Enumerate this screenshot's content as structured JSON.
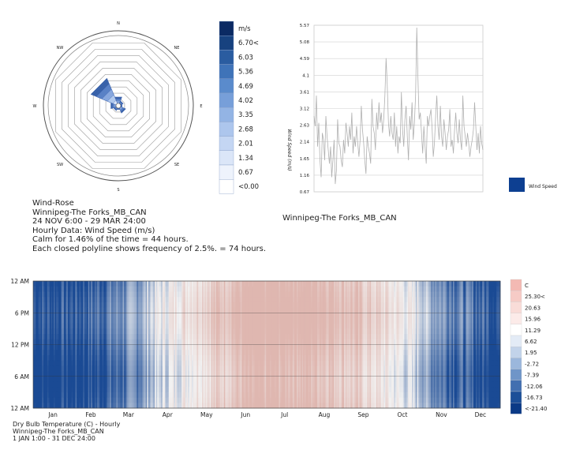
{
  "palettes": {
    "wind_legend": [
      "#0b2a63",
      "#17427f",
      "#2a5ca0",
      "#3f73b8",
      "#5a8bcc",
      "#779fd9",
      "#93b4e4",
      "#adc6ed",
      "#c4d6f3",
      "#dbe6f8",
      "#eef3fc",
      "#ffffff"
    ],
    "wind_rose_fill": "#8fb0e3",
    "wind_rose_stroke": "#4a6fb3",
    "temp_legend": [
      "#f3b9b3",
      "#f6cbc6",
      "#f9dcd8",
      "#fcebe9",
      "#ffffff",
      "#e3ebf6",
      "#c2d3ea",
      "#9bb7dc",
      "#6f95c8",
      "#426fb0",
      "#1c4f98",
      "#0b3a86"
    ],
    "heat_warm": "#d9a39a",
    "heat_cold": "#1a4a94",
    "heat_mid": "#f2f2f2",
    "line_color": "#b0b0b0",
    "series_color": "#0d3f91"
  },
  "chart_data": [
    {
      "type": "wind-rose",
      "directions": [
        "N",
        "NE",
        "E",
        "SE",
        "S",
        "SW",
        "W",
        "NW"
      ],
      "direction_frequency_pct": [
        3.5,
        2.0,
        1.5,
        3.0,
        1.5,
        2.0,
        3.0,
        11.0
      ],
      "ring_step_pct": 2.5,
      "ring_count": 10,
      "legend": {
        "unit": "m/s",
        "labels": [
          "m/s",
          "6.70<",
          "6.03",
          "5.36",
          "4.69",
          "4.02",
          "3.35",
          "2.68",
          "2.01",
          "1.34",
          "0.67",
          "<0.00"
        ]
      },
      "caption": [
        "Wind-Rose",
        "Winnipeg-The Forks_MB_CAN",
        "24 NOV 6:00 - 29 MAR 24:00",
        "Hourly Data: Wind Speed (m/s)",
        "Calm for 1.46% of the time = 44 hours.",
        "Each closed polyline shows frequency of 2.5%. = 74 hours."
      ]
    },
    {
      "type": "line",
      "y_ticks": [
        "5.57",
        "5.08",
        "4.59",
        "4.1",
        "3.61",
        "3.12",
        "2.63",
        "2.14",
        "1.65",
        "1.16",
        "0.67"
      ],
      "ylim": [
        0.67,
        5.57
      ],
      "ylabel": "Wind Speed (m/s)",
      "series": [
        {
          "name": "Wind Speed",
          "values": [
            2.9,
            2.6,
            3.5,
            2.0,
            2.7,
            1.6,
            1.1,
            2.4,
            2.2,
            1.6,
            2.9,
            2.3,
            1.9,
            1.5,
            2.0,
            1.1,
            1.6,
            2.2,
            0.9,
            1.3,
            2.8,
            2.1,
            2.0,
            1.6,
            1.4,
            2.2,
            1.8,
            2.7,
            2.4,
            2.0,
            2.6,
            2.2,
            3.0,
            1.8,
            2.3,
            2.0,
            2.6,
            2.1,
            1.7,
            2.2,
            3.2,
            2.5,
            2.1,
            1.6,
            1.2,
            2.3,
            2.0,
            1.8,
            1.5,
            3.4,
            2.6,
            2.4,
            1.9,
            3.0,
            2.5,
            3.3,
            2.7,
            3.0,
            2.4,
            2.8,
            3.5,
            4.6,
            3.8,
            2.7,
            2.3,
            2.9,
            2.4,
            2.2,
            3.0,
            2.0,
            2.6,
            1.8,
            2.3,
            2.1,
            3.6,
            2.5,
            2.0,
            2.8,
            3.2,
            2.3,
            1.6,
            2.9,
            2.5,
            3.3,
            2.2,
            2.7,
            3.5,
            5.5,
            4.0,
            2.8,
            3.0,
            2.4,
            1.8,
            2.6,
            2.0,
            1.5,
            2.9,
            2.6,
            2.9,
            3.1,
            2.5,
            1.7,
            2.1,
            2.9,
            3.5,
            2.6,
            2.2,
            3.2,
            2.3,
            2.0,
            2.8,
            2.4,
            1.9,
            2.3,
            2.5,
            3.1,
            2.0,
            2.2,
            1.8,
            2.5,
            3.0,
            2.4,
            2.1,
            2.8,
            2.2,
            1.9,
            3.5,
            2.6,
            2.3,
            2.0,
            2.4,
            2.1,
            1.7,
            2.0,
            2.2,
            2.5,
            3.3,
            2.6,
            1.9,
            2.4,
            1.8,
            2.6,
            2.1,
            1.9
          ]
        }
      ],
      "legend": [
        "Wind Speed"
      ],
      "caption": "Winnipeg-The Forks_MB_CAN"
    },
    {
      "type": "heatmap",
      "y_ticks": [
        "12 AM",
        "6 PM",
        "12 PM",
        "6 AM",
        "12 AM"
      ],
      "x_ticks": [
        "Jan",
        "Feb",
        "Mar",
        "Apr",
        "May",
        "Jun",
        "Jul",
        "Aug",
        "Sep",
        "Oct",
        "Nov",
        "Dec"
      ],
      "legend": {
        "unit": "C",
        "labels": [
          "C",
          "25.30<",
          "20.63",
          "15.96",
          "11.29",
          "6.62",
          "1.95",
          "-2.72",
          "-7.39",
          "-12.06",
          "-16.73",
          "<-21.40"
        ]
      },
      "caption": [
        "Dry Bulb Temperature (C) - Hourly",
        "Winnipeg-The Forks_MB_CAN",
        "1 JAN 1:00 - 31 DEC 24:00"
      ]
    }
  ]
}
